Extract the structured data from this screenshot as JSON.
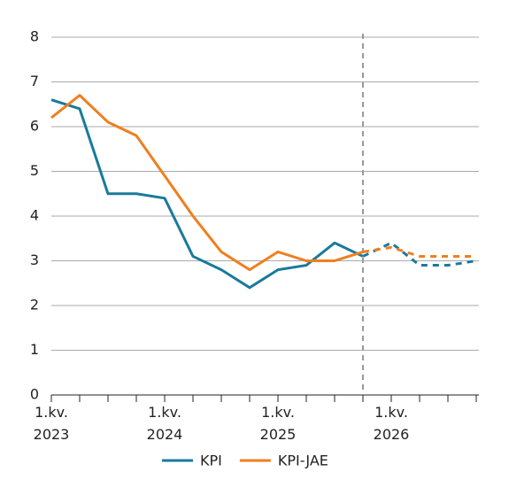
{
  "chart_data": {
    "type": "line",
    "categories": [
      "1.kv. 2023",
      null,
      null,
      null,
      "1.kv. 2024",
      null,
      null,
      null,
      "1.kv. 2025",
      null,
      null,
      null,
      "1.kv. 2026",
      null,
      null,
      null
    ],
    "series": [
      {
        "name": "KPI",
        "color": "#1a7a9c",
        "values": [
          6.6,
          6.4,
          4.5,
          4.5,
          4.4,
          3.1,
          2.8,
          2.4,
          2.8,
          2.9,
          3.4,
          3.1,
          3.4,
          2.9,
          2.9,
          3.0
        ]
      },
      {
        "name": "KPI-JAE",
        "color": "#f07f1e",
        "values": [
          6.2,
          6.7,
          6.1,
          5.8,
          4.9,
          4.0,
          3.2,
          2.8,
          3.2,
          3.0,
          3.0,
          3.2,
          3.3,
          3.1,
          3.1,
          3.1
        ]
      }
    ],
    "ylim": [
      0,
      8
    ],
    "yticks": [
      0,
      1,
      2,
      3,
      4,
      5,
      6,
      7,
      8
    ],
    "grid": true,
    "projection_start_index": 11,
    "legend": "bottom"
  }
}
